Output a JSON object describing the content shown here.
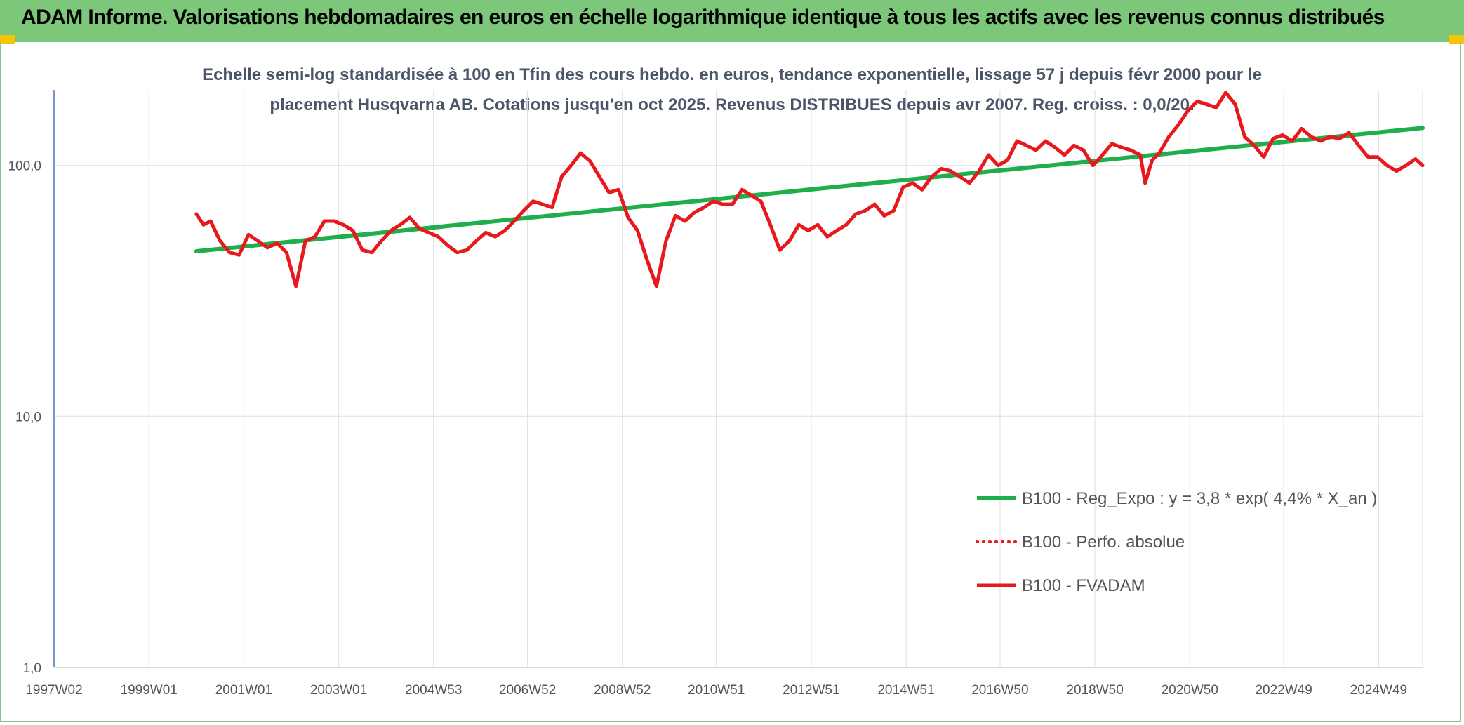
{
  "header": {
    "title": "ADAM Informe. Valorisations hebdomadaires en euros en échelle logarithmique identique à tous les actifs avec les revenus connus distribués"
  },
  "chart_data": {
    "type": "line",
    "title_line1": "Echelle semi-log standardisée à 100 en Tfin des cours hebdo. en euros, tendance exponentielle, lissage 57 j depuis févr 2000 pour le",
    "title_line2": "placement Husqvarna AB. Cotations jusqu'en oct 2025. Revenus DISTRIBUES depuis avr 2007. Reg. croiss. : 0,0/20.",
    "y_scale": "log",
    "ylim": [
      1,
      200
    ],
    "y_ticks": [
      "1,0",
      "10,0",
      "100,0"
    ],
    "xlim": [
      1997.0,
      2025.85
    ],
    "x_ticks": [
      "1997W02",
      "1999W01",
      "2001W01",
      "2003W01",
      "2004W53",
      "2006W52",
      "2008W52",
      "2010W51",
      "2012W51",
      "2014W51",
      "2016W50",
      "2018W50",
      "2020W50",
      "2022W49",
      "2024W49"
    ],
    "grid": true,
    "legend_position": "bottom-right",
    "colors": {
      "trend": "#1fae4b",
      "fvadam": "#e8191c",
      "perfo": "#e8191c"
    },
    "series": [
      {
        "name": "B100 - Reg_Expo : y = 3,8 * exp( 4,4% *  X_an )",
        "style": "solid-green",
        "x": [
          2000.0,
          2025.85
        ],
        "y": [
          45.5,
          141
        ]
      },
      {
        "name": "B100 - Perfo. absolue",
        "style": "dotted-red",
        "x": [],
        "y": []
      },
      {
        "name": "B100 - FVADAM",
        "style": "solid-red",
        "x": [
          2000.0,
          2000.15,
          2000.3,
          2000.5,
          2000.7,
          2000.9,
          2001.1,
          2001.3,
          2001.5,
          2001.7,
          2001.9,
          2002.1,
          2002.3,
          2002.5,
          2002.7,
          2002.9,
          2003.1,
          2003.3,
          2003.5,
          2003.7,
          2003.9,
          2004.1,
          2004.3,
          2004.5,
          2004.7,
          2004.9,
          2005.1,
          2005.3,
          2005.5,
          2005.7,
          2005.9,
          2006.1,
          2006.3,
          2006.5,
          2006.7,
          2006.9,
          2007.1,
          2007.3,
          2007.5,
          2007.7,
          2007.9,
          2008.1,
          2008.3,
          2008.5,
          2008.7,
          2008.9,
          2009.1,
          2009.3,
          2009.5,
          2009.7,
          2009.9,
          2010.1,
          2010.3,
          2010.5,
          2010.7,
          2010.9,
          2011.1,
          2011.3,
          2011.5,
          2011.7,
          2011.9,
          2012.1,
          2012.3,
          2012.5,
          2012.7,
          2012.9,
          2013.1,
          2013.3,
          2013.5,
          2013.7,
          2013.9,
          2014.1,
          2014.3,
          2014.5,
          2014.7,
          2014.9,
          2015.1,
          2015.3,
          2015.5,
          2015.7,
          2015.9,
          2016.1,
          2016.3,
          2016.5,
          2016.7,
          2016.9,
          2017.1,
          2017.3,
          2017.5,
          2017.7,
          2017.9,
          2018.1,
          2018.3,
          2018.5,
          2018.7,
          2018.9,
          2019.1,
          2019.3,
          2019.5,
          2019.7,
          2019.9,
          2020.0,
          2020.15,
          2020.3,
          2020.5,
          2020.7,
          2020.9,
          2021.1,
          2021.3,
          2021.5,
          2021.7,
          2021.9,
          2022.1,
          2022.3,
          2022.5,
          2022.7,
          2022.9,
          2023.1,
          2023.3,
          2023.5,
          2023.7,
          2023.9,
          2024.1,
          2024.3,
          2024.5,
          2024.7,
          2024.9,
          2025.1,
          2025.3,
          2025.5,
          2025.7,
          2025.85
        ],
        "y": [
          64,
          58,
          60,
          50,
          45,
          44,
          53,
          50,
          47,
          49,
          45,
          33,
          50,
          52,
          60,
          60,
          58,
          55,
          46,
          45,
          50,
          55,
          58,
          62,
          56,
          54,
          52,
          48,
          45,
          46,
          50,
          54,
          52,
          55,
          60,
          66,
          72,
          70,
          68,
          90,
          100,
          112,
          104,
          90,
          78,
          80,
          62,
          55,
          42,
          33,
          50,
          63,
          60,
          65,
          68,
          72,
          70,
          70,
          80,
          76,
          72,
          58,
          46,
          50,
          58,
          55,
          58,
          52,
          55,
          58,
          64,
          66,
          70,
          63,
          66,
          82,
          85,
          80,
          90,
          97,
          95,
          90,
          85,
          95,
          110,
          100,
          105,
          125,
          120,
          115,
          125,
          118,
          110,
          120,
          115,
          100,
          110,
          122,
          118,
          115,
          110,
          85,
          105,
          112,
          130,
          145,
          165,
          180,
          175,
          170,
          195,
          175,
          130,
          120,
          108,
          128,
          132,
          125,
          140,
          130,
          125,
          130,
          128,
          135,
          120,
          108,
          108,
          100,
          95,
          100,
          106,
          100
        ]
      }
    ]
  }
}
